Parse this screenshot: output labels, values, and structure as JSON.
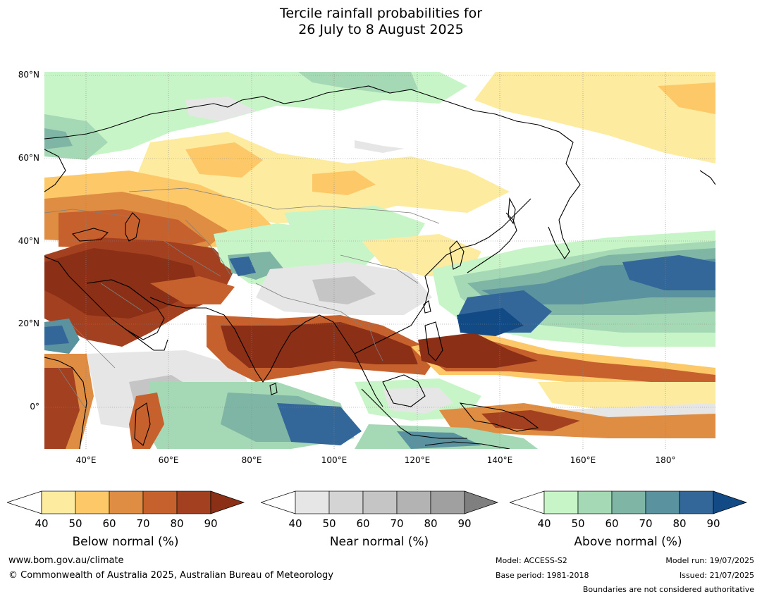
{
  "title": {
    "line1": "Tercile rainfall probabilities for",
    "line2": "26 July to 8 August 2025"
  },
  "map": {
    "lat_labels": [
      "80°N",
      "60°N",
      "40°N",
      "20°N",
      "0°"
    ],
    "lon_labels": [
      "40°E",
      "60°E",
      "80°E",
      "100°E",
      "120°E",
      "140°E",
      "160°E",
      "180°"
    ],
    "lat_range": [
      -10,
      80
    ],
    "lon_range": [
      30,
      192
    ]
  },
  "legends": [
    {
      "label": "Below normal (%)",
      "ticks": [
        "40",
        "50",
        "60",
        "70",
        "80",
        "90"
      ],
      "colors": [
        "#ffffff",
        "#fdeca0",
        "#fdc868",
        "#de8d42",
        "#c6612e",
        "#a3401f",
        "#8b2f17"
      ]
    },
    {
      "label": "Near normal (%)",
      "ticks": [
        "40",
        "50",
        "60",
        "70",
        "80",
        "90"
      ],
      "colors": [
        "#ffffff",
        "#e6e6e6",
        "#d4d4d4",
        "#c5c5c5",
        "#b3b3b3",
        "#a0a0a0",
        "#7f7f7f"
      ]
    },
    {
      "label": "Above normal (%)",
      "ticks": [
        "40",
        "50",
        "60",
        "70",
        "80",
        "90"
      ],
      "colors": [
        "#ffffff",
        "#c8f5c8",
        "#a5d8b5",
        "#7fb5a5",
        "#5a92a0",
        "#336699",
        "#124a85"
      ]
    }
  ],
  "footer": {
    "website": "www.bom.gov.au/climate",
    "copyright": "© Commonwealth of Australia 2025, Australian Bureau of Meteorology",
    "model": "Model: ACCESS-S2",
    "base_period": "Base period: 1981-2018",
    "model_run": "Model run: 19/07/2025",
    "issued": "Issued: 21/07/2025",
    "disclaimer": "Boundaries are not considered authoritative"
  }
}
